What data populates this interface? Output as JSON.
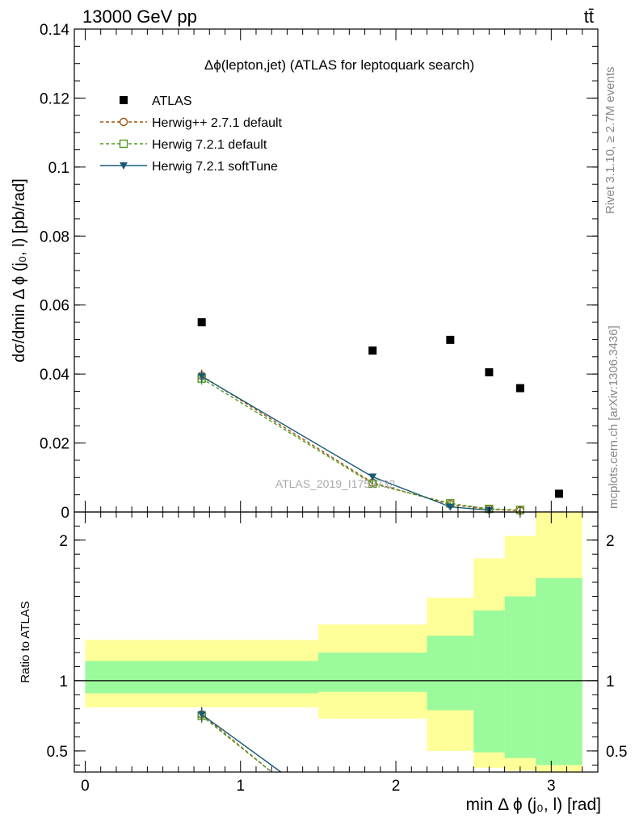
{
  "header": {
    "left": "13000 GeV pp",
    "right": "tt̄"
  },
  "side_text": {
    "rivet": "Rivet 3.1.10, ≥ 2.7M events",
    "mcplots": "mcplots.cern.ch [arXiv:1306.3436]"
  },
  "watermark": "ATLAS_2019_I1759732",
  "chart_data": [
    {
      "type": "scatter",
      "panel": "main",
      "title": "Δϕ(lepton,jet) (ATLAS for leptoquark search)",
      "ylabel": "dσ/dmin Δ ϕ (j₀, l) [pb/rad]",
      "xlim": [
        -0.07,
        3.3
      ],
      "ylim": [
        0,
        0.14
      ],
      "yticks": [
        "0",
        "0.02",
        "0.04",
        "0.06",
        "0.08",
        "0.1",
        "0.12",
        "0.14"
      ],
      "legend_position": "top-left",
      "series": [
        {
          "name": "ATLAS",
          "color": "#000000",
          "marker": "square",
          "x": [
            0.75,
            1.85,
            2.35,
            2.6,
            2.8,
            3.05
          ],
          "values": [
            0.055,
            0.0468,
            0.0499,
            0.0405,
            0.0359,
            0.0053
          ]
        },
        {
          "name": "Herwig++ 2.7.1 default",
          "color": "#a0520e",
          "marker": "open-circle",
          "line": "dashed",
          "x": [
            0.75,
            1.85,
            2.35,
            2.6,
            2.8
          ],
          "values": [
            0.0395,
            0.0085,
            0.0022,
            0.0008,
            0.0004
          ],
          "errors": [
            0.0018,
            0.0008,
            0.0004,
            0.0002,
            0.0001
          ]
        },
        {
          "name": "Herwig 7.2.1 default",
          "color": "#4f9a1c",
          "marker": "open-square",
          "line": "dashed",
          "x": [
            0.75,
            1.85,
            2.35,
            2.6,
            2.8
          ],
          "values": [
            0.0387,
            0.0082,
            0.0025,
            0.0009,
            0.0006
          ],
          "errors": [
            0.0018,
            0.0008,
            0.0004,
            0.0002,
            0.0001
          ]
        },
        {
          "name": "Herwig 7.2.1 softTune",
          "color": "#1a5a78",
          "marker": "triangle-down",
          "line": "solid",
          "x": [
            0.75,
            1.85,
            2.35,
            2.6
          ],
          "values": [
            0.0393,
            0.0102,
            0.0015,
            0.0005
          ],
          "errors": [
            0.0018,
            0.0008,
            0.0004,
            0.0002
          ]
        }
      ]
    },
    {
      "type": "line",
      "panel": "ratio",
      "ylabel": "Ratio to ATLAS",
      "xlabel": "min Δ ϕ (j₀, l) [rad]",
      "xlim": [
        -0.07,
        3.3
      ],
      "ylim": [
        0.35,
        2.2
      ],
      "xticks": [
        "0",
        "1",
        "2",
        "3"
      ],
      "yticks": [
        "0.5",
        "1",
        "2"
      ],
      "bands": {
        "edges": [
          0.0,
          1.5,
          2.2,
          2.5,
          2.7,
          2.9,
          3.2
        ],
        "stat_low": [
          0.91,
          0.92,
          0.79,
          0.49,
          0.45,
          0.4
        ],
        "stat_high": [
          1.14,
          1.2,
          1.32,
          1.5,
          1.6,
          1.73
        ],
        "total_low": [
          0.81,
          0.73,
          0.5,
          0.38,
          0.36,
          0.3
        ],
        "total_high": [
          1.29,
          1.4,
          1.59,
          1.87,
          2.03,
          2.2
        ],
        "stat_color": "#9bfa9b",
        "total_color": "#ffff99"
      },
      "series": [
        {
          "name": "Herwig++ 2.7.1 default",
          "color": "#a0520e",
          "x": [
            0.75,
            1.2
          ],
          "values": [
            0.76,
            0.35
          ]
        },
        {
          "name": "Herwig 7.2.1 default",
          "color": "#4f9a1c",
          "x": [
            0.75,
            1.2
          ],
          "values": [
            0.75,
            0.35
          ]
        },
        {
          "name": "Herwig 7.2.1 softTune",
          "color": "#1a5a78",
          "x": [
            0.75,
            1.26
          ],
          "values": [
            0.76,
            0.35
          ]
        }
      ]
    }
  ]
}
